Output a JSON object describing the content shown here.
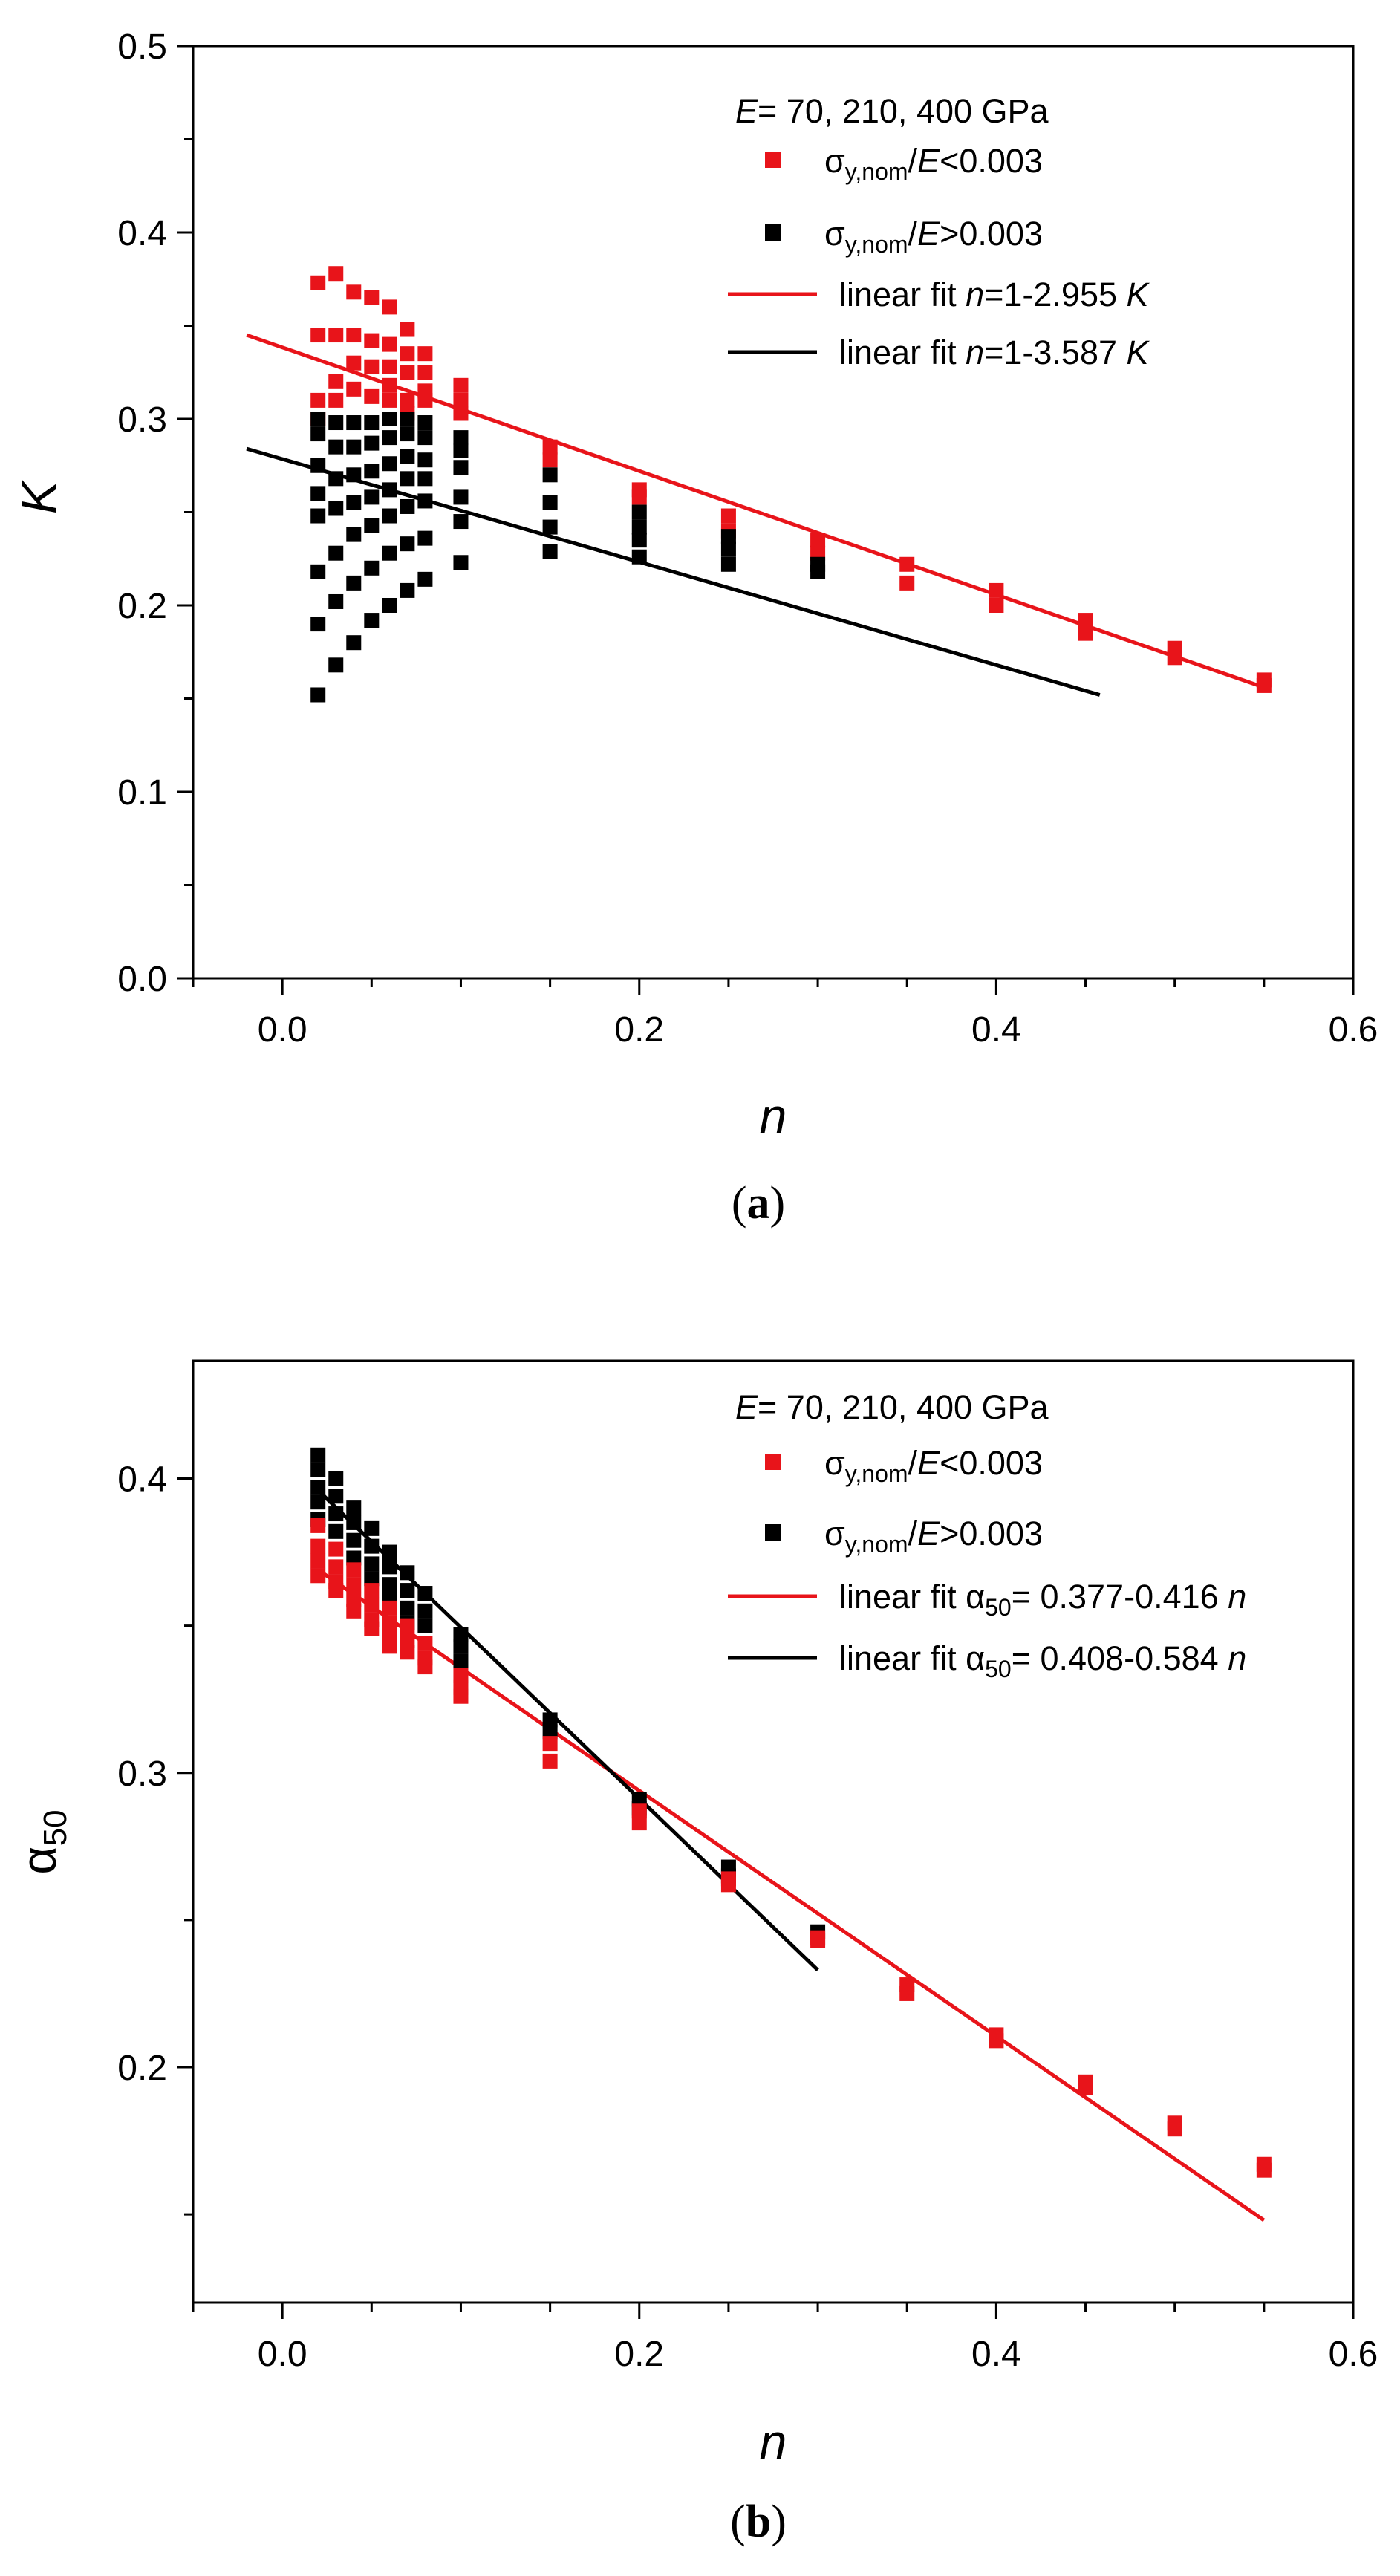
{
  "chart_data": [
    {
      "type": "scatter",
      "panel_label": "(a)",
      "xlabel": "n",
      "ylabel": "K",
      "xlim": [
        -0.05,
        0.6
      ],
      "ylim": [
        0.0,
        0.5
      ],
      "x_ticks": [
        "0.0",
        "0.2",
        "0.4",
        "0.6"
      ],
      "y_ticks": [
        "0.0",
        "0.1",
        "0.2",
        "0.3",
        "0.4",
        "0.5"
      ],
      "legend": {
        "title_italic": "E",
        "title_rest": "= 70, 210, 400 GPa",
        "entries": [
          {
            "sym": "σ",
            "sub": "y,nom",
            "slash": "/",
            "italic": "E",
            "rest": "<0.003",
            "color": "#e8141a",
            "kind": "marker"
          },
          {
            "sym": "σ",
            "sub": "y,nom",
            "slash": "/",
            "italic": "E",
            "rest": ">0.003",
            "color": "#000000",
            "kind": "marker"
          },
          {
            "prefix": "linear fit ",
            "italic": "n",
            "mid": "=1-2.955 ",
            "italic2": "K",
            "color": "#e8141a",
            "kind": "line"
          },
          {
            "prefix": "linear fit ",
            "italic": "n",
            "mid": "=1-3.587 ",
            "italic2": "K",
            "color": "#000000",
            "kind": "line"
          }
        ]
      },
      "series": [
        {
          "name": "σy,nom/E<0.003",
          "color": "#e8141a",
          "points": [
            [
              0.02,
              0.373
            ],
            [
              0.02,
              0.345
            ],
            [
              0.02,
              0.31
            ],
            [
              0.02,
              0.3
            ],
            [
              0.03,
              0.378
            ],
            [
              0.03,
              0.345
            ],
            [
              0.03,
              0.32
            ],
            [
              0.03,
              0.31
            ],
            [
              0.04,
              0.368
            ],
            [
              0.04,
              0.345
            ],
            [
              0.04,
              0.33
            ],
            [
              0.04,
              0.316
            ],
            [
              0.05,
              0.365
            ],
            [
              0.05,
              0.342
            ],
            [
              0.05,
              0.328
            ],
            [
              0.05,
              0.312
            ],
            [
              0.06,
              0.36
            ],
            [
              0.06,
              0.34
            ],
            [
              0.06,
              0.328
            ],
            [
              0.06,
              0.318
            ],
            [
              0.06,
              0.31
            ],
            [
              0.07,
              0.348
            ],
            [
              0.07,
              0.335
            ],
            [
              0.07,
              0.325
            ],
            [
              0.07,
              0.31
            ],
            [
              0.07,
              0.303
            ],
            [
              0.08,
              0.335
            ],
            [
              0.08,
              0.325
            ],
            [
              0.08,
              0.315
            ],
            [
              0.08,
              0.31
            ],
            [
              0.1,
              0.318
            ],
            [
              0.1,
              0.31
            ],
            [
              0.1,
              0.303
            ],
            [
              0.15,
              0.285
            ],
            [
              0.15,
              0.278
            ],
            [
              0.2,
              0.262
            ],
            [
              0.2,
              0.258
            ],
            [
              0.25,
              0.248
            ],
            [
              0.25,
              0.24
            ],
            [
              0.3,
              0.235
            ],
            [
              0.3,
              0.228
            ],
            [
              0.35,
              0.222
            ],
            [
              0.35,
              0.212
            ],
            [
              0.4,
              0.208
            ],
            [
              0.4,
              0.2
            ],
            [
              0.45,
              0.192
            ],
            [
              0.45,
              0.185
            ],
            [
              0.5,
              0.177
            ],
            [
              0.5,
              0.172
            ],
            [
              0.55,
              0.16
            ],
            [
              0.55,
              0.157
            ]
          ]
        },
        {
          "name": "σy,nom/E>0.003",
          "color": "#000000",
          "points": [
            [
              0.02,
              0.3
            ],
            [
              0.02,
              0.292
            ],
            [
              0.02,
              0.275
            ],
            [
              0.02,
              0.26
            ],
            [
              0.02,
              0.248
            ],
            [
              0.02,
              0.218
            ],
            [
              0.02,
              0.19
            ],
            [
              0.02,
              0.152
            ],
            [
              0.03,
              0.298
            ],
            [
              0.03,
              0.285
            ],
            [
              0.03,
              0.268
            ],
            [
              0.03,
              0.252
            ],
            [
              0.03,
              0.228
            ],
            [
              0.03,
              0.202
            ],
            [
              0.03,
              0.168
            ],
            [
              0.04,
              0.298
            ],
            [
              0.04,
              0.285
            ],
            [
              0.04,
              0.27
            ],
            [
              0.04,
              0.255
            ],
            [
              0.04,
              0.238
            ],
            [
              0.04,
              0.212
            ],
            [
              0.04,
              0.18
            ],
            [
              0.05,
              0.298
            ],
            [
              0.05,
              0.287
            ],
            [
              0.05,
              0.272
            ],
            [
              0.05,
              0.258
            ],
            [
              0.05,
              0.243
            ],
            [
              0.05,
              0.22
            ],
            [
              0.05,
              0.192
            ],
            [
              0.06,
              0.3
            ],
            [
              0.06,
              0.29
            ],
            [
              0.06,
              0.276
            ],
            [
              0.06,
              0.262
            ],
            [
              0.06,
              0.248
            ],
            [
              0.06,
              0.228
            ],
            [
              0.06,
              0.2
            ],
            [
              0.07,
              0.3
            ],
            [
              0.07,
              0.292
            ],
            [
              0.07,
              0.28
            ],
            [
              0.07,
              0.268
            ],
            [
              0.07,
              0.253
            ],
            [
              0.07,
              0.233
            ],
            [
              0.07,
              0.208
            ],
            [
              0.08,
              0.298
            ],
            [
              0.08,
              0.29
            ],
            [
              0.08,
              0.278
            ],
            [
              0.08,
              0.268
            ],
            [
              0.08,
              0.256
            ],
            [
              0.08,
              0.236
            ],
            [
              0.08,
              0.214
            ],
            [
              0.1,
              0.29
            ],
            [
              0.1,
              0.283
            ],
            [
              0.1,
              0.274
            ],
            [
              0.1,
              0.258
            ],
            [
              0.1,
              0.245
            ],
            [
              0.1,
              0.223
            ],
            [
              0.15,
              0.27
            ],
            [
              0.15,
              0.255
            ],
            [
              0.15,
              0.242
            ],
            [
              0.15,
              0.229
            ],
            [
              0.2,
              0.25
            ],
            [
              0.2,
              0.242
            ],
            [
              0.2,
              0.235
            ],
            [
              0.2,
              0.226
            ],
            [
              0.25,
              0.237
            ],
            [
              0.25,
              0.23
            ],
            [
              0.25,
              0.222
            ],
            [
              0.3,
              0.222
            ],
            [
              0.3,
              0.218
            ]
          ]
        }
      ],
      "fits": [
        {
          "name": "linear fit n=1-2.955 K",
          "color": "#e8141a",
          "x": [
            -0.02,
            0.55
          ],
          "y": [
            0.345,
            0.156
          ]
        },
        {
          "name": "linear fit n=1-3.587 K",
          "color": "#000000",
          "x": [
            -0.02,
            0.458
          ],
          "y": [
            0.284,
            0.152
          ]
        }
      ]
    },
    {
      "type": "scatter",
      "panel_label": "(b)",
      "xlabel": "n",
      "ylabel_sym": "α",
      "ylabel_sub": "50",
      "xlim": [
        -0.05,
        0.6
      ],
      "ylim": [
        0.12,
        0.44
      ],
      "x_ticks": [
        "0.0",
        "0.2",
        "0.4",
        "0.6"
      ],
      "y_ticks": [
        "0.2",
        "0.3",
        "0.4"
      ],
      "legend": {
        "title_italic": "E",
        "title_rest": "= 70, 210, 400 GPa",
        "entries": [
          {
            "sym": "σ",
            "sub": "y,nom",
            "slash": "/",
            "italic": "E",
            "rest": "<0.003",
            "color": "#e8141a",
            "kind": "marker"
          },
          {
            "sym": "σ",
            "sub": "y,nom",
            "slash": "/",
            "italic": "E",
            "rest": ">0.003",
            "color": "#000000",
            "kind": "marker"
          },
          {
            "prefix": "linear fit ",
            "sym": "α",
            "sub": "50",
            "mid": "= 0.377-0.416 ",
            "italic2": "n",
            "color": "#e8141a",
            "kind": "line"
          },
          {
            "prefix": "linear fit ",
            "sym": "α",
            "sub": "50",
            "mid": "= 0.408-0.584 ",
            "italic2": "n",
            "color": "#000000",
            "kind": "line"
          }
        ]
      },
      "series": [
        {
          "name": "σy,nom/E>0.003",
          "color": "#000000",
          "points": [
            [
              0.02,
              0.408
            ],
            [
              0.02,
              0.403
            ],
            [
              0.02,
              0.397
            ],
            [
              0.02,
              0.392
            ],
            [
              0.02,
              0.386
            ],
            [
              0.03,
              0.4
            ],
            [
              0.03,
              0.394
            ],
            [
              0.03,
              0.388
            ],
            [
              0.03,
              0.382
            ],
            [
              0.04,
              0.39
            ],
            [
              0.04,
              0.385
            ],
            [
              0.04,
              0.379
            ],
            [
              0.04,
              0.373
            ],
            [
              0.05,
              0.383
            ],
            [
              0.05,
              0.377
            ],
            [
              0.05,
              0.371
            ],
            [
              0.05,
              0.366
            ],
            [
              0.06,
              0.375
            ],
            [
              0.06,
              0.37
            ],
            [
              0.06,
              0.364
            ],
            [
              0.06,
              0.359
            ],
            [
              0.07,
              0.368
            ],
            [
              0.07,
              0.362
            ],
            [
              0.07,
              0.356
            ],
            [
              0.07,
              0.351
            ],
            [
              0.08,
              0.361
            ],
            [
              0.08,
              0.355
            ],
            [
              0.08,
              0.35
            ],
            [
              0.1,
              0.347
            ],
            [
              0.1,
              0.343
            ],
            [
              0.1,
              0.338
            ],
            [
              0.15,
              0.318
            ],
            [
              0.15,
              0.314
            ],
            [
              0.2,
              0.291
            ],
            [
              0.2,
              0.288
            ],
            [
              0.25,
              0.268
            ],
            [
              0.25,
              0.265
            ],
            [
              0.3,
              0.246
            ]
          ]
        },
        {
          "name": "σy,nom/E<0.003",
          "color": "#e8141a",
          "points": [
            [
              0.02,
              0.384
            ],
            [
              0.02,
              0.377
            ],
            [
              0.02,
              0.372
            ],
            [
              0.02,
              0.367
            ],
            [
              0.03,
              0.376
            ],
            [
              0.03,
              0.37
            ],
            [
              0.03,
              0.365
            ],
            [
              0.03,
              0.362
            ],
            [
              0.04,
              0.369
            ],
            [
              0.04,
              0.364
            ],
            [
              0.04,
              0.359
            ],
            [
              0.04,
              0.355
            ],
            [
              0.05,
              0.362
            ],
            [
              0.05,
              0.357
            ],
            [
              0.05,
              0.352
            ],
            [
              0.05,
              0.349
            ],
            [
              0.06,
              0.356
            ],
            [
              0.06,
              0.351
            ],
            [
              0.06,
              0.346
            ],
            [
              0.06,
              0.343
            ],
            [
              0.07,
              0.35
            ],
            [
              0.07,
              0.345
            ],
            [
              0.07,
              0.341
            ],
            [
              0.08,
              0.344
            ],
            [
              0.08,
              0.339
            ],
            [
              0.08,
              0.336
            ],
            [
              0.1,
              0.333
            ],
            [
              0.1,
              0.329
            ],
            [
              0.1,
              0.326
            ],
            [
              0.15,
              0.31
            ],
            [
              0.15,
              0.304
            ],
            [
              0.2,
              0.287
            ],
            [
              0.2,
              0.283
            ],
            [
              0.25,
              0.264
            ],
            [
              0.25,
              0.262
            ],
            [
              0.3,
              0.244
            ],
            [
              0.3,
              0.243
            ],
            [
              0.35,
              0.228
            ],
            [
              0.35,
              0.225
            ],
            [
              0.4,
              0.211
            ],
            [
              0.4,
              0.209
            ],
            [
              0.45,
              0.195
            ],
            [
              0.45,
              0.193
            ],
            [
              0.5,
              0.181
            ],
            [
              0.5,
              0.179
            ],
            [
              0.55,
              0.167
            ],
            [
              0.55,
              0.165
            ]
          ]
        }
      ],
      "fits": [
        {
          "name": "linear fit α50= 0.377-0.416 n",
          "color": "#e8141a",
          "x": [
            0.02,
            0.55
          ],
          "y": [
            0.369,
            0.148
          ]
        },
        {
          "name": "linear fit α50= 0.408-0.584 n",
          "color": "#000000",
          "x": [
            0.02,
            0.3
          ],
          "y": [
            0.396,
            0.233
          ]
        }
      ]
    }
  ]
}
